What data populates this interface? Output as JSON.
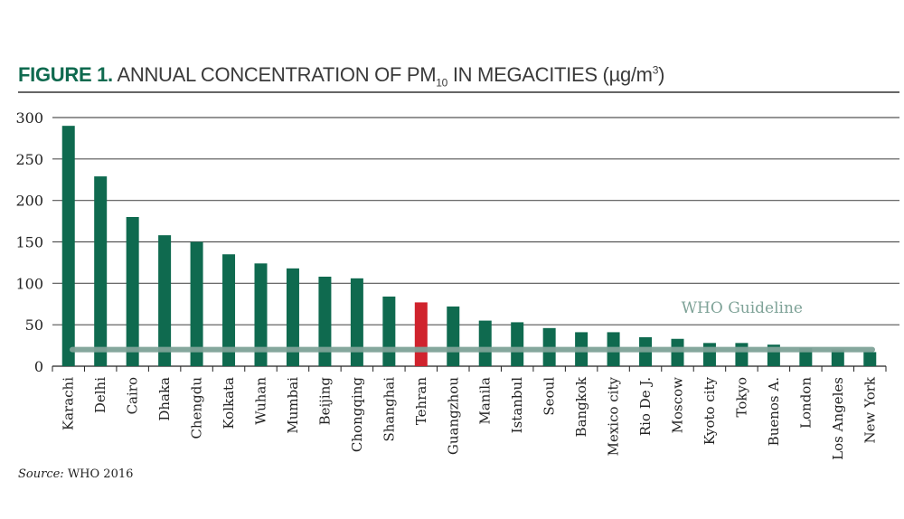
{
  "title": {
    "figure": "FIGURE 1.",
    "text": "ANNUAL CONCENTRATION OF PM",
    "sub": "10",
    "text2": " IN MEGACITIES (µg/m",
    "sup": "3",
    "close": ")"
  },
  "source": {
    "label": "Source:",
    "text": " WHO 2016"
  },
  "colors": {
    "bar": "#0f6a4f",
    "highlight": "#d0232d",
    "guideline": "#7fa398",
    "grid": "#555555"
  },
  "chart_data": {
    "type": "bar",
    "title": "ANNUAL CONCENTRATION OF PM10 IN MEGACITIES (µg/m3)",
    "xlabel": "",
    "ylabel": "",
    "ylim": [
      0,
      300
    ],
    "yticks": [
      0,
      50,
      100,
      150,
      200,
      250,
      300
    ],
    "grid": true,
    "categories": [
      "Karachi",
      "Delhi",
      "Cairo",
      "Dhaka",
      "Chengdu",
      "Kolkata",
      "Wuhan",
      "Mumbai",
      "Beijing",
      "Chongqing",
      "Shanghai",
      "Tehran",
      "Guangzhou",
      "Manila",
      "Istanbul",
      "Seoul",
      "Bangkok",
      "Mexico city",
      "Rio De J.",
      "Moscow",
      "Kyoto city",
      "Tokyo",
      "Buenos A.",
      "London",
      "Los Angeles",
      "New York"
    ],
    "values": [
      290,
      229,
      180,
      158,
      150,
      135,
      124,
      118,
      108,
      106,
      84,
      77,
      72,
      55,
      53,
      46,
      41,
      41,
      35,
      33,
      28,
      28,
      26,
      22,
      20,
      17
    ],
    "highlight": "Tehran",
    "reference_line": {
      "label": "WHO Guideline",
      "value": 20
    }
  }
}
